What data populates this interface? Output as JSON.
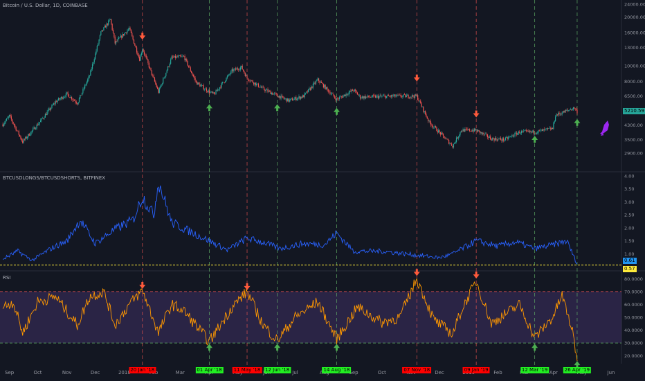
{
  "panes": {
    "price": {
      "title": "Bitcoin / U.S. Dollar, 1D, COINBASE",
      "last_label": "5210.59"
    },
    "ratio": {
      "title": "BTCUSDLONGS/BTCUSDSHORTS, BITFINEX",
      "last_label": "0.61",
      "threshold_label": "0.57"
    },
    "rsi": {
      "title": "RSI"
    }
  },
  "date_badges": {
    "sell": [
      "20 Jan '18",
      "11 May '18",
      "07 Nov '18",
      "09 Jan '19"
    ],
    "buy": [
      "01 Apr '18",
      "12 Jun '18",
      "14 Aug '18",
      "12 Mar '19",
      "26 Apr '19"
    ]
  },
  "colors": {
    "background": "#131722",
    "candle_up": "#26a69a",
    "candle_down": "#ef5350",
    "ratio_line": "#2962ff",
    "rsi_line": "#ff9800",
    "rsi_band": "#7e57c2",
    "threshold": "#ffeb3b",
    "sell_marker": "#ff5a3c",
    "buy_marker": "#4caf50",
    "sell_badge": "#ff0000",
    "buy_badge": "#22ee22",
    "last_price_badge": "#26a69a",
    "ratio_badge": "#2196f3",
    "rocket": "#9c27f0"
  },
  "icons": {
    "sell": "down-arrow-icon",
    "buy": "up-arrow-icon",
    "rocket": "rocket-icon"
  },
  "chart_data": [
    {
      "type": "candlestick",
      "title": "Bitcoin / U.S. Dollar, 1D, COINBASE",
      "y_scale": "log",
      "ylim": [
        2400,
        24000
      ],
      "y_ticks": [
        2900,
        3500,
        4300,
        5300,
        6500,
        8000,
        10000,
        13000,
        16000,
        20000,
        24000
      ],
      "y_tick_labels": [
        "2900.00",
        "3500.00",
        "4300.00",
        "5300.00",
        "6500.00",
        "8000.00",
        "10000.00",
        "13000.00",
        "16000.00",
        "20000.00",
        "24000.00"
      ],
      "x_labels": [
        "Sep",
        "Oct",
        "Nov",
        "Dec",
        "2018",
        "Feb",
        "Mar",
        "Apr",
        "May",
        "Jun",
        "Jul",
        "Aug",
        "Sep",
        "Oct",
        "Nov",
        "Dec",
        "2019",
        "Feb",
        "Mar",
        "Apr",
        "May",
        "Jun"
      ],
      "x_range": [
        "2017-08-22",
        "2019-06-12"
      ],
      "close_points": [
        {
          "date": "2017-08-25",
          "close": 4350
        },
        {
          "date": "2017-09-01",
          "close": 4900
        },
        {
          "date": "2017-09-15",
          "close": 3400
        },
        {
          "date": "2017-10-01",
          "close": 4350
        },
        {
          "date": "2017-10-20",
          "close": 6000
        },
        {
          "date": "2017-11-01",
          "close": 6700
        },
        {
          "date": "2017-11-12",
          "close": 5900
        },
        {
          "date": "2017-11-25",
          "close": 8700
        },
        {
          "date": "2017-12-07",
          "close": 16000
        },
        {
          "date": "2017-12-17",
          "close": 19300
        },
        {
          "date": "2017-12-22",
          "close": 13800
        },
        {
          "date": "2018-01-06",
          "close": 17000
        },
        {
          "date": "2018-01-17",
          "close": 11000
        },
        {
          "date": "2018-01-20",
          "close": 12800
        },
        {
          "date": "2018-02-06",
          "close": 6900
        },
        {
          "date": "2018-02-20",
          "close": 11200
        },
        {
          "date": "2018-03-05",
          "close": 11400
        },
        {
          "date": "2018-03-18",
          "close": 7900
        },
        {
          "date": "2018-04-01",
          "close": 6900
        },
        {
          "date": "2018-04-06",
          "close": 6650
        },
        {
          "date": "2018-04-25",
          "close": 9300
        },
        {
          "date": "2018-05-05",
          "close": 9800
        },
        {
          "date": "2018-05-11",
          "close": 8400
        },
        {
          "date": "2018-05-28",
          "close": 7200
        },
        {
          "date": "2018-06-12",
          "close": 6550
        },
        {
          "date": "2018-06-24",
          "close": 6100
        },
        {
          "date": "2018-07-10",
          "close": 6500
        },
        {
          "date": "2018-07-25",
          "close": 8200
        },
        {
          "date": "2018-08-14",
          "close": 6200
        },
        {
          "date": "2018-09-01",
          "close": 7100
        },
        {
          "date": "2018-09-08",
          "close": 6400
        },
        {
          "date": "2018-10-15",
          "close": 6500
        },
        {
          "date": "2018-11-07",
          "close": 6500
        },
        {
          "date": "2018-11-20",
          "close": 4500
        },
        {
          "date": "2018-12-15",
          "close": 3200
        },
        {
          "date": "2018-12-24",
          "close": 4000
        },
        {
          "date": "2019-01-09",
          "close": 4000
        },
        {
          "date": "2019-01-25",
          "close": 3550
        },
        {
          "date": "2019-02-08",
          "close": 3500
        },
        {
          "date": "2019-02-24",
          "close": 3900
        },
        {
          "date": "2019-03-12",
          "close": 3900
        },
        {
          "date": "2019-03-31",
          "close": 4100
        },
        {
          "date": "2019-04-03",
          "close": 4950
        },
        {
          "date": "2019-04-23",
          "close": 5500
        },
        {
          "date": "2019-04-26",
          "close": 5210.59
        }
      ]
    },
    {
      "type": "line",
      "title": "BTCUSDLONGS/BTCUSDSHORTS, BITFINEX",
      "ylim": [
        0.4,
        4.1
      ],
      "y_ticks": [
        1,
        1.5,
        2,
        2.5,
        3,
        3.5,
        4
      ],
      "y_tick_labels": [
        "1.00",
        "1.50",
        "2.00",
        "2.50",
        "3.00",
        "3.50",
        "4.00"
      ],
      "reference_line": 0.57,
      "points": [
        {
          "date": "2017-08-25",
          "value": 0.8
        },
        {
          "date": "2017-09-10",
          "value": 1.1
        },
        {
          "date": "2017-09-25",
          "value": 0.75
        },
        {
          "date": "2017-10-15",
          "value": 1.2
        },
        {
          "date": "2017-11-01",
          "value": 1.5
        },
        {
          "date": "2017-11-15",
          "value": 2.3
        },
        {
          "date": "2017-12-01",
          "value": 1.4
        },
        {
          "date": "2017-12-20",
          "value": 1.9
        },
        {
          "date": "2018-01-10",
          "value": 2.3
        },
        {
          "date": "2018-01-20",
          "value": 3.2
        },
        {
          "date": "2018-02-01",
          "value": 2.5
        },
        {
          "date": "2018-02-06",
          "value": 3.8
        },
        {
          "date": "2018-02-20",
          "value": 2.2
        },
        {
          "date": "2018-03-15",
          "value": 1.8
        },
        {
          "date": "2018-04-01",
          "value": 1.5
        },
        {
          "date": "2018-04-20",
          "value": 1.15
        },
        {
          "date": "2018-05-11",
          "value": 1.6
        },
        {
          "date": "2018-06-01",
          "value": 1.4
        },
        {
          "date": "2018-06-15",
          "value": 1.2
        },
        {
          "date": "2018-07-10",
          "value": 1.4
        },
        {
          "date": "2018-08-01",
          "value": 1.35
        },
        {
          "date": "2018-08-14",
          "value": 1.8
        },
        {
          "date": "2018-09-01",
          "value": 1.1
        },
        {
          "date": "2018-10-01",
          "value": 1.1
        },
        {
          "date": "2018-11-07",
          "value": 0.95
        },
        {
          "date": "2018-12-01",
          "value": 0.85
        },
        {
          "date": "2018-12-15",
          "value": 1.0
        },
        {
          "date": "2019-01-09",
          "value": 1.5
        },
        {
          "date": "2019-02-01",
          "value": 1.3
        },
        {
          "date": "2019-02-20",
          "value": 1.45
        },
        {
          "date": "2019-03-12",
          "value": 1.2
        },
        {
          "date": "2019-04-01",
          "value": 1.35
        },
        {
          "date": "2019-04-15",
          "value": 1.5
        },
        {
          "date": "2019-04-26",
          "value": 0.61
        }
      ]
    },
    {
      "type": "line",
      "title": "RSI",
      "ylim": [
        15,
        85
      ],
      "y_ticks": [
        20,
        30,
        40,
        50,
        60,
        70,
        80
      ],
      "y_tick_labels": [
        "20.0000",
        "30.0000",
        "40.0000",
        "50.0000",
        "60.0000",
        "70.0000",
        "80.0000"
      ],
      "band": [
        30,
        70
      ],
      "points": [
        {
          "date": "2017-08-25",
          "value": 58
        },
        {
          "date": "2017-09-05",
          "value": 62
        },
        {
          "date": "2017-09-15",
          "value": 38
        },
        {
          "date": "2017-10-01",
          "value": 62
        },
        {
          "date": "2017-10-20",
          "value": 66
        },
        {
          "date": "2017-11-12",
          "value": 44
        },
        {
          "date": "2017-11-25",
          "value": 66
        },
        {
          "date": "2017-12-10",
          "value": 70
        },
        {
          "date": "2017-12-22",
          "value": 44
        },
        {
          "date": "2018-01-06",
          "value": 60
        },
        {
          "date": "2018-01-20",
          "value": 71
        },
        {
          "date": "2018-02-06",
          "value": 38
        },
        {
          "date": "2018-02-20",
          "value": 60
        },
        {
          "date": "2018-03-05",
          "value": 55
        },
        {
          "date": "2018-04-01",
          "value": 31
        },
        {
          "date": "2018-04-25",
          "value": 58
        },
        {
          "date": "2018-05-11",
          "value": 70
        },
        {
          "date": "2018-05-28",
          "value": 44
        },
        {
          "date": "2018-06-12",
          "value": 32
        },
        {
          "date": "2018-07-01",
          "value": 50
        },
        {
          "date": "2018-07-25",
          "value": 62
        },
        {
          "date": "2018-08-14",
          "value": 33
        },
        {
          "date": "2018-09-05",
          "value": 58
        },
        {
          "date": "2018-10-01",
          "value": 46
        },
        {
          "date": "2018-10-20",
          "value": 50
        },
        {
          "date": "2018-11-07",
          "value": 80
        },
        {
          "date": "2018-11-25",
          "value": 48
        },
        {
          "date": "2018-12-15",
          "value": 37
        },
        {
          "date": "2018-12-24",
          "value": 55
        },
        {
          "date": "2019-01-09",
          "value": 78
        },
        {
          "date": "2019-01-25",
          "value": 45
        },
        {
          "date": "2019-02-24",
          "value": 60
        },
        {
          "date": "2019-03-12",
          "value": 34
        },
        {
          "date": "2019-03-31",
          "value": 50
        },
        {
          "date": "2019-04-10",
          "value": 67
        },
        {
          "date": "2019-04-20",
          "value": 42
        },
        {
          "date": "2019-04-26",
          "value": 18
        }
      ]
    }
  ]
}
